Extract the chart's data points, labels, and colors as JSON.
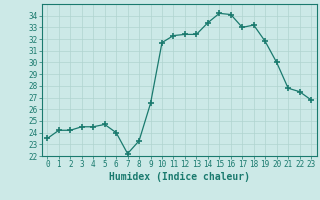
{
  "x": [
    0,
    1,
    2,
    3,
    4,
    5,
    6,
    7,
    8,
    9,
    10,
    11,
    12,
    13,
    14,
    15,
    16,
    17,
    18,
    19,
    20,
    21,
    22,
    23
  ],
  "y": [
    23.5,
    24.2,
    24.2,
    24.5,
    24.5,
    24.7,
    24.0,
    22.2,
    23.3,
    26.5,
    31.7,
    32.3,
    32.4,
    32.4,
    33.4,
    34.2,
    34.1,
    33.0,
    33.2,
    31.8,
    30.0,
    27.8,
    27.5,
    26.8
  ],
  "line_color": "#1a7a6e",
  "marker": "+",
  "marker_size": 4,
  "bg_color": "#cce9e7",
  "grid_color": "#b0d4d0",
  "xlabel": "Humidex (Indice chaleur)",
  "xlim": [
    -0.5,
    23.5
  ],
  "ylim": [
    22,
    35
  ],
  "yticks": [
    22,
    23,
    24,
    25,
    26,
    27,
    28,
    29,
    30,
    31,
    32,
    33,
    34
  ],
  "xticks": [
    0,
    1,
    2,
    3,
    4,
    5,
    6,
    7,
    8,
    9,
    10,
    11,
    12,
    13,
    14,
    15,
    16,
    17,
    18,
    19,
    20,
    21,
    22,
    23
  ],
  "tick_color": "#1a7a6e",
  "label_fontsize": 7,
  "tick_fontsize": 5.5
}
